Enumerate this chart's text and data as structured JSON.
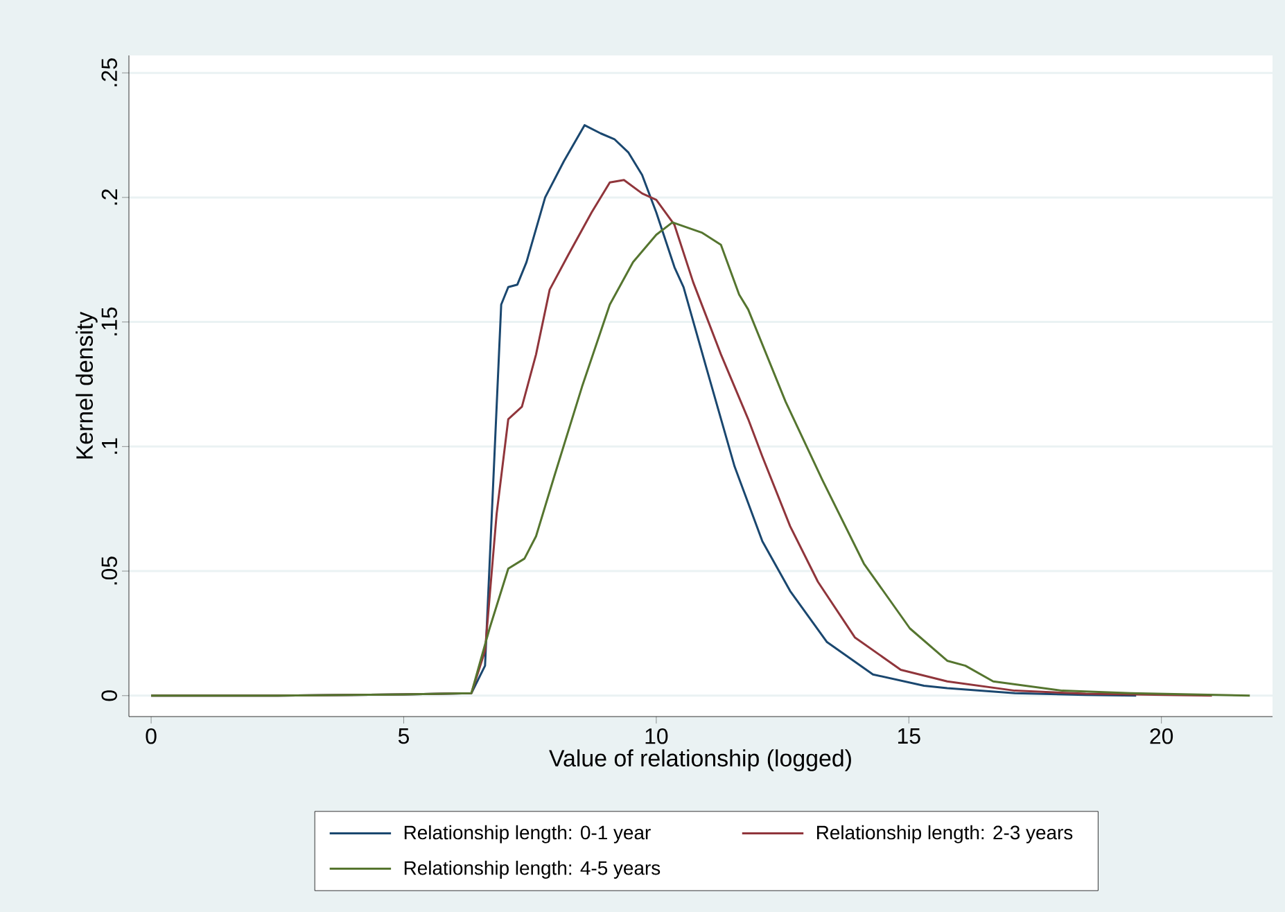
{
  "chart_data": {
    "type": "line",
    "xlabel": "Value of relationship (logged)",
    "ylabel": "Kernel density",
    "xlim": [
      -0.44,
      22.2
    ],
    "ylim": [
      -0.0084,
      0.257
    ],
    "xticks": [
      0,
      5,
      10,
      15,
      20
    ],
    "yticks": [
      0,
      {
        "value": 0.05,
        "label": ".05"
      },
      {
        "value": 0.1,
        "label": ".1"
      },
      {
        "value": 0.15,
        "label": ".15"
      },
      {
        "value": 0.2,
        "label": ".2"
      },
      {
        "value": 0.25,
        "label": ".25"
      }
    ],
    "grid": "y",
    "legend": "bottom",
    "marker": "none",
    "line_style": "solid",
    "series": [
      {
        "name": "Relationship length: 0-1 year",
        "color": "#1a476f",
        "x": [
          0,
          2.5,
          5,
          6.34,
          6.61,
          6.93,
          7.07,
          7.25,
          7.43,
          7.8,
          8.17,
          8.58,
          8.9,
          9.17,
          9.45,
          9.72,
          10.0,
          10.36,
          10.54,
          11.0,
          11.55,
          12.1,
          12.65,
          13.38,
          14.29,
          15.3,
          15.76,
          17.1,
          18.5,
          19.5
        ],
        "values": [
          0,
          0,
          0.0005,
          0.001,
          0.012,
          0.157,
          0.164,
          0.165,
          0.174,
          0.2,
          0.2145,
          0.229,
          0.2257,
          0.2234,
          0.218,
          0.209,
          0.194,
          0.172,
          0.164,
          0.131,
          0.092,
          0.062,
          0.042,
          0.0215,
          0.0085,
          0.004,
          0.003,
          0.001,
          0.0003,
          0
        ]
      },
      {
        "name": "Relationship length: 2-3 years",
        "color": "#90353b",
        "x": [
          0,
          2.5,
          5,
          6.34,
          6.61,
          6.84,
          7.07,
          7.34,
          7.62,
          7.89,
          8.26,
          8.72,
          9.08,
          9.36,
          9.72,
          10.0,
          10.36,
          10.73,
          11.28,
          11.82,
          12.1,
          12.65,
          13.2,
          13.93,
          14.84,
          15.76,
          17.1,
          18.5,
          21.0
        ],
        "values": [
          0,
          0,
          0.0005,
          0.001,
          0.018,
          0.073,
          0.111,
          0.116,
          0.137,
          0.163,
          0.177,
          0.194,
          0.206,
          0.207,
          0.2016,
          0.199,
          0.189,
          0.166,
          0.137,
          0.111,
          0.096,
          0.068,
          0.0457,
          0.0234,
          0.0104,
          0.0057,
          0.002,
          0.0008,
          0
        ]
      },
      {
        "name": "Relationship length: 4-5 years",
        "color": "#55752f",
        "x": [
          0,
          2.5,
          5,
          6.34,
          6.7,
          7.07,
          7.39,
          7.62,
          7.98,
          8.53,
          9.08,
          9.54,
          10.0,
          10.32,
          10.91,
          11.28,
          11.64,
          11.82,
          12.56,
          13.29,
          14.11,
          15.02,
          15.76,
          16.12,
          16.67,
          18.04,
          19.4,
          21.75
        ],
        "values": [
          0,
          0,
          0.0005,
          0.001,
          0.027,
          0.051,
          0.055,
          0.064,
          0.088,
          0.124,
          0.157,
          0.174,
          0.185,
          0.19,
          0.1858,
          0.181,
          0.161,
          0.155,
          0.118,
          0.0865,
          0.053,
          0.027,
          0.014,
          0.012,
          0.0057,
          0.002,
          0.001,
          0
        ]
      }
    ]
  }
}
